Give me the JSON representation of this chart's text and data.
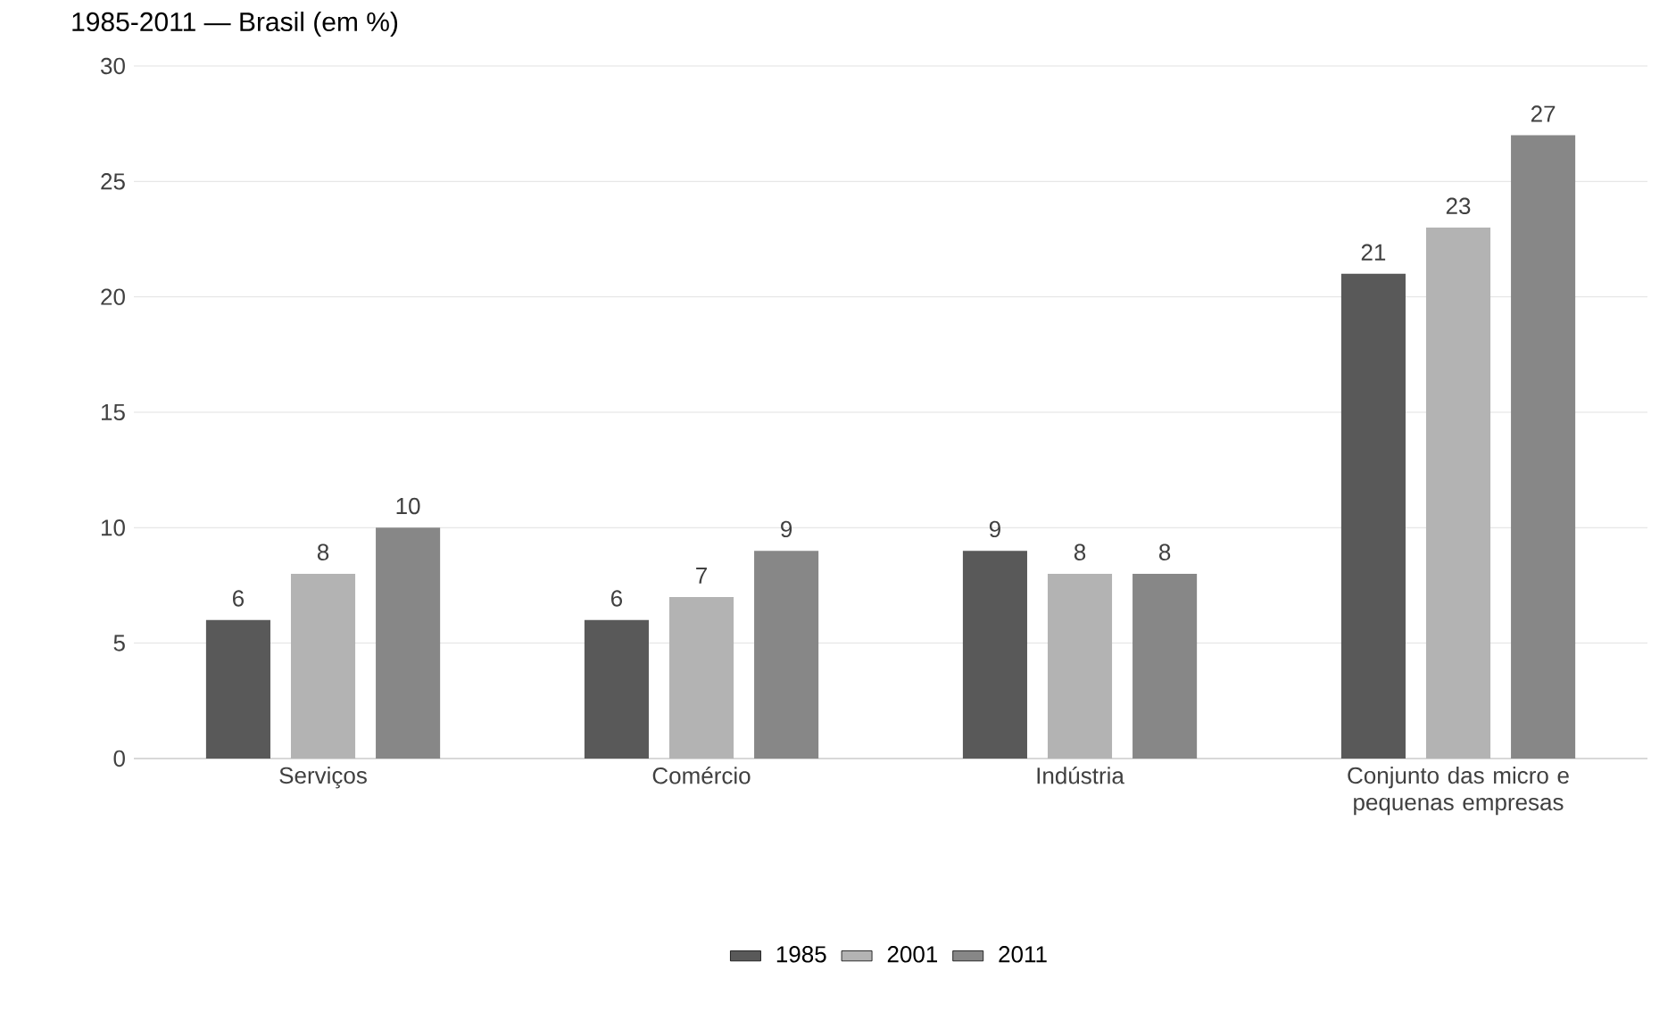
{
  "chart_data": {
    "type": "bar",
    "title": "1985-2011 — Brasil (em %)",
    "categories": [
      "Serviços",
      "Comércio",
      "Indústria",
      "Conjunto das micro e pequenas empresas"
    ],
    "series": [
      {
        "name": "1985",
        "color": "#595959",
        "values": [
          6,
          6,
          9,
          21
        ]
      },
      {
        "name": "2001",
        "color": "#b3b3b3",
        "values": [
          8,
          7,
          8,
          23
        ]
      },
      {
        "name": "2011",
        "color": "#878787",
        "values": [
          10,
          9,
          8,
          27
        ]
      }
    ],
    "ylim": [
      0,
      30
    ],
    "yticks": [
      0,
      5,
      10,
      15,
      20,
      25,
      30
    ],
    "grid": "y",
    "legend": "bottom",
    "data_labels": true
  }
}
